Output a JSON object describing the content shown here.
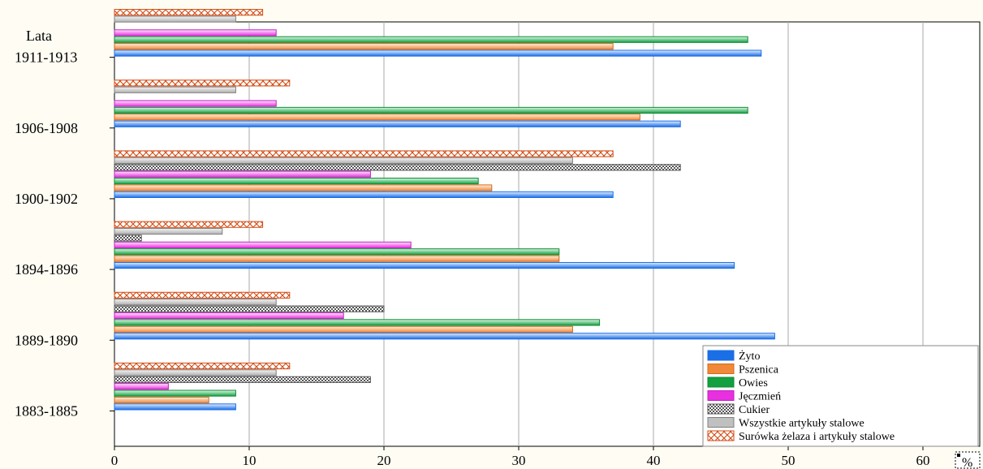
{
  "chart_data": {
    "type": "bar",
    "orientation": "horizontal",
    "ylabel": "Lata",
    "xlabel": "%",
    "categories": [
      "1883-1885",
      "1889-1890",
      "1894-1896",
      "1900-1902",
      "1906-1908",
      "1911-1913"
    ],
    "xlim": [
      0,
      65
    ],
    "xticks": [
      0,
      10,
      20,
      30,
      40,
      50,
      60
    ],
    "grid": true,
    "legend_position": "bottom-right",
    "series": [
      {
        "name": "Żyto",
        "color": "#1a6ee6",
        "pattern": "solid",
        "values": [
          9,
          49,
          46,
          37,
          42,
          48
        ]
      },
      {
        "name": "Pszenica",
        "color": "#f08a3a",
        "pattern": "solid",
        "values": [
          7,
          34,
          33,
          28,
          39,
          37
        ]
      },
      {
        "name": "Owies",
        "color": "#12a040",
        "pattern": "solid",
        "values": [
          9,
          36,
          33,
          27,
          47,
          47
        ]
      },
      {
        "name": "Jęczmień",
        "color": "#e830e0",
        "pattern": "solid",
        "values": [
          4,
          17,
          22,
          19,
          12,
          12
        ]
      },
      {
        "name": "Cukier",
        "color": "#666666",
        "pattern": "dots",
        "values": [
          19,
          20,
          2,
          42,
          0,
          0
        ]
      },
      {
        "name": "Wszystkie artykuły stalowe",
        "color": "#b0b0b0",
        "pattern": "solid",
        "values": [
          12,
          12,
          8,
          34,
          9,
          9
        ]
      },
      {
        "name": "Surówka żelaza i artykuły stalowe",
        "color": "#d24a12",
        "pattern": "cross",
        "values": [
          13,
          13,
          11,
          37,
          13,
          11
        ]
      }
    ]
  }
}
